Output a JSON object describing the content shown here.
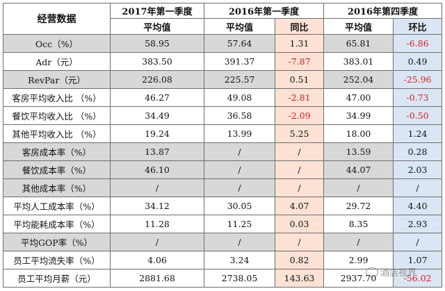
{
  "header": {
    "kpi_label": "经营数据",
    "groups": [
      "2017年第一季度",
      "2016年第一季度",
      "2016年第四季度"
    ],
    "sub": [
      "平均值",
      "平均值",
      "同比",
      "平均值",
      "环比"
    ]
  },
  "rows": [
    {
      "label": "Occ（%）",
      "v2017": "58.95",
      "v2016q1": "57.64",
      "yoy": "1.31",
      "v2016q4": "65.81",
      "qoq": "-6.86",
      "yoy_neg": false,
      "qoq_neg": true,
      "gray": true
    },
    {
      "label": "Adr（元）",
      "v2017": "383.50",
      "v2016q1": "391.37",
      "yoy": "-7.87",
      "v2016q4": "383.01",
      "qoq": "0.49",
      "yoy_neg": true,
      "qoq_neg": false,
      "gray": false
    },
    {
      "label": "RevPar（元）",
      "v2017": "226.08",
      "v2016q1": "225.57",
      "yoy": "0.51",
      "v2016q4": "252.04",
      "qoq": "-25.96",
      "yoy_neg": false,
      "qoq_neg": true,
      "gray": true
    },
    {
      "label": "客房平均收入比 （%）",
      "v2017": "46.27",
      "v2016q1": "49.08",
      "yoy": "-2.81",
      "v2016q4": "47.00",
      "qoq": "-0.73",
      "yoy_neg": true,
      "qoq_neg": true,
      "gray": false
    },
    {
      "label": "餐饮平均收入比 （%）",
      "v2017": "34.49",
      "v2016q1": "36.58",
      "yoy": "-2.09",
      "v2016q4": "34.99",
      "qoq": "-0.50",
      "yoy_neg": true,
      "qoq_neg": true,
      "gray": false
    },
    {
      "label": "其他平均收入比 （%）",
      "v2017": "19.24",
      "v2016q1": "13.99",
      "yoy": "5.25",
      "v2016q4": "18.00",
      "qoq": "1.24",
      "yoy_neg": false,
      "qoq_neg": false,
      "gray": false
    },
    {
      "label": "客房成本率（%）",
      "v2017": "13.87",
      "v2016q1": "/",
      "yoy": "/",
      "v2016q4": "13.59",
      "qoq": "0.28",
      "yoy_neg": false,
      "qoq_neg": false,
      "gray": true
    },
    {
      "label": "餐饮成本率（%）",
      "v2017": "46.10",
      "v2016q1": "/",
      "yoy": "/",
      "v2016q4": "44.07",
      "qoq": "2.03",
      "yoy_neg": false,
      "qoq_neg": false,
      "gray": true
    },
    {
      "label": "其他成本率（%）",
      "v2017": "/",
      "v2016q1": "/",
      "yoy": "/",
      "v2016q4": "/",
      "qoq": "/",
      "yoy_neg": false,
      "qoq_neg": false,
      "gray": true
    },
    {
      "label": "平均人工成本率（%）",
      "v2017": "34.12",
      "v2016q1": "30.05",
      "yoy": "4.07",
      "v2016q4": "29.72",
      "qoq": "4.40",
      "yoy_neg": false,
      "qoq_neg": false,
      "gray": false
    },
    {
      "label": "平均能耗成本率（%）",
      "v2017": "11.28",
      "v2016q1": "11.25",
      "yoy": "0.03",
      "v2016q4": "8.35",
      "qoq": "2.93",
      "yoy_neg": false,
      "qoq_neg": false,
      "gray": false
    },
    {
      "label": "平均GOP率（%）",
      "v2017": "/",
      "v2016q1": "/",
      "yoy": "/",
      "v2016q4": "/",
      "qoq": "/",
      "yoy_neg": false,
      "qoq_neg": false,
      "gray": true
    },
    {
      "label": "员工平均流失率（%）",
      "v2017": "4.06",
      "v2016q1": "3.24",
      "yoy": "0.82",
      "v2016q4": "2.99",
      "qoq": "1.07",
      "yoy_neg": false,
      "qoq_neg": false,
      "gray": false
    },
    {
      "label": "员工平均月薪（元）",
      "v2017": "2881.68",
      "v2016q1": "2738.05",
      "yoy": "143.63",
      "v2016q4": "2937.70",
      "qoq": "-56.02",
      "yoy_neg": false,
      "qoq_neg": true,
      "gray": false
    }
  ],
  "colors": {
    "negative": "#d62020",
    "yoy_bg": "#fbe2d5",
    "qoq_bg": "#dbe6f4",
    "gray_row": "#d8d8d8"
  },
  "watermark": {
    "text": "酒店视界",
    "icon": "wechat-icon"
  }
}
